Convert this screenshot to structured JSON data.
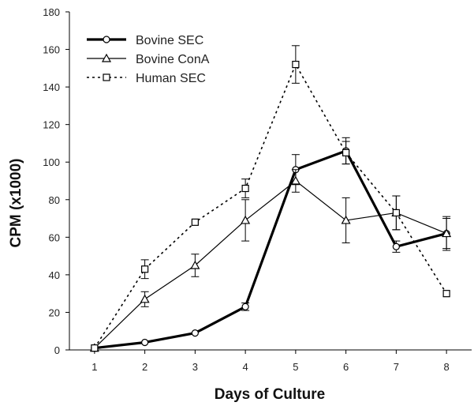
{
  "chart_data": {
    "type": "line",
    "title": "",
    "xlabel": "Days of Culture",
    "ylabel": "CPM (x1000)",
    "x": [
      1,
      2,
      3,
      4,
      5,
      6,
      7,
      8
    ],
    "xlim": [
      0.5,
      8.5
    ],
    "ylim": [
      0,
      180
    ],
    "yticks": [
      0,
      20,
      40,
      60,
      80,
      100,
      120,
      140,
      160,
      180
    ],
    "grid": false,
    "legend_position": "top-left",
    "series": [
      {
        "name": "Bovine SEC",
        "marker": "circle",
        "line_style": "solid-thick",
        "values": [
          1,
          4,
          9,
          23,
          96,
          106,
          55,
          62
        ],
        "errors": [
          0,
          0,
          0,
          2,
          8,
          7,
          3,
          9
        ]
      },
      {
        "name": "Bovine ConA",
        "marker": "triangle",
        "line_style": "solid-thin",
        "values": [
          1,
          27,
          45,
          69,
          90,
          69,
          73,
          62
        ],
        "errors": [
          0,
          4,
          6,
          11,
          6,
          12,
          9,
          8
        ]
      },
      {
        "name": "Human SEC",
        "marker": "square",
        "line_style": "dotted",
        "values": [
          1,
          43,
          68,
          86,
          152,
          105,
          73,
          30
        ],
        "errors": [
          0,
          5,
          0,
          5,
          10,
          6,
          9,
          0
        ]
      }
    ]
  }
}
